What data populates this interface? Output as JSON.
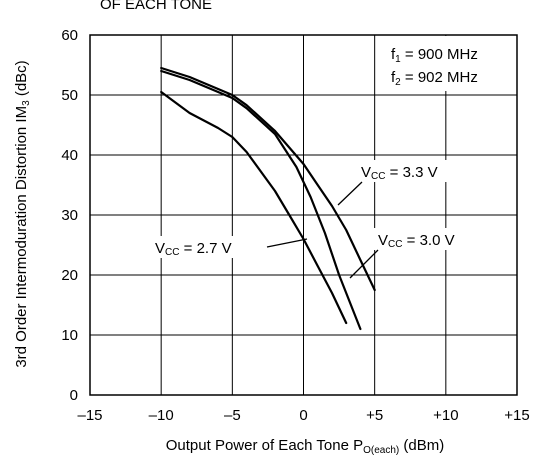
{
  "chart_data": {
    "type": "line",
    "title": "OF EACH TONE",
    "xlabel": "Output Power of Each Tone",
    "xlabel_symbol": "P",
    "xlabel_subscript": "O(each)",
    "xlabel_unit": "(dBm)",
    "ylabel": "3rd Order Intermoduration Distortion",
    "ylabel_symbol": "IM",
    "ylabel_subscript": "3",
    "ylabel_unit": "(dBc)",
    "xlim": [
      -15,
      15
    ],
    "ylim": [
      0,
      60
    ],
    "xticks": [
      -15,
      -10,
      -5,
      0,
      5,
      10,
      15
    ],
    "xtick_labels": [
      "–15",
      "–10",
      "–5",
      "0",
      "+5",
      "+10",
      "+15"
    ],
    "yticks": [
      0,
      10,
      20,
      30,
      40,
      50,
      60
    ],
    "ytick_labels": [
      "0",
      "10",
      "20",
      "30",
      "40",
      "50",
      "60"
    ],
    "grid": true,
    "conditions": [
      {
        "sym": "f",
        "sub": "1",
        "text": " = 900 MHz"
      },
      {
        "sym": "f",
        "sub": "2",
        "text": " = 902 MHz"
      }
    ],
    "series": [
      {
        "name": "VCC = 3.3 V",
        "sym": "V",
        "sub": "CC",
        "val": " = 3.3 V",
        "x": [
          -10,
          -8,
          -6,
          -5,
          -4,
          -2,
          0,
          1,
          2,
          3,
          4,
          5
        ],
        "y": [
          54.5,
          53,
          51,
          50,
          48.3,
          44,
          38.5,
          35,
          31.5,
          27.5,
          22.5,
          17.5
        ]
      },
      {
        "name": "VCC = 3.0 V",
        "sym": "V",
        "sub": "CC",
        "val": " = 3.0 V",
        "x": [
          -10,
          -8,
          -6,
          -5,
          -4,
          -2,
          -0.5,
          0.5,
          1.5,
          2.5,
          3.5,
          4
        ],
        "y": [
          54,
          52.5,
          50.5,
          49.5,
          47.8,
          43.5,
          38,
          33,
          27,
          20,
          14,
          11
        ]
      },
      {
        "name": "VCC = 2.7 V",
        "sym": "V",
        "sub": "CC",
        "val": " = 2.7 V",
        "x": [
          -10,
          -8,
          -6,
          -5,
          -4,
          -2,
          -1,
          0,
          1,
          2,
          3
        ],
        "y": [
          50.5,
          47,
          44.5,
          43,
          40.5,
          34,
          30,
          26,
          21.5,
          17,
          12
        ]
      }
    ],
    "colors": {
      "axis": "#000000",
      "grid": "#000000",
      "line": "#000000"
    }
  }
}
